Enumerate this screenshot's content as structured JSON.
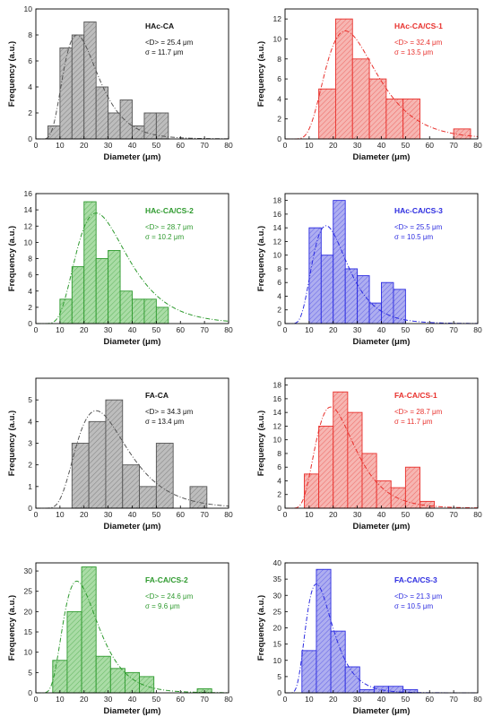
{
  "figure": {
    "xlabel": "Diameter (μm)",
    "ylabel": "Frequency (a.u.)"
  },
  "chart_data": [
    {
      "type": "bar",
      "title": "HAc-CA",
      "stat_mean": "<D> = 25.4 μm",
      "stat_sigma": "σ = 11.7 μm",
      "color": "#555555",
      "fill": "#bdbdbd",
      "xlim": [
        0,
        80
      ],
      "ylim": [
        0,
        10
      ],
      "xticks": [
        0,
        10,
        20,
        30,
        40,
        50,
        60,
        70,
        80
      ],
      "yticks": [
        0,
        2,
        4,
        6,
        8,
        10
      ],
      "bin_edges": [
        5,
        10,
        15,
        20,
        25,
        30,
        35,
        40,
        45,
        50,
        55
      ],
      "values": [
        1,
        7,
        8,
        9,
        4,
        2,
        3,
        1,
        2,
        2
      ],
      "fit": {
        "distribution": "log-normal",
        "peak_x": 17,
        "peak_y": 8.0
      }
    },
    {
      "type": "bar",
      "title": "HAc-CA/CS-1",
      "stat_mean": "<D> = 32.4 μm",
      "stat_sigma": "σ = 13.5 μm",
      "color": "#e8302c",
      "fill": "#f6b6b2",
      "xlim": [
        0,
        80
      ],
      "ylim": [
        0,
        13
      ],
      "xticks": [
        0,
        10,
        20,
        30,
        40,
        50,
        60,
        70,
        80
      ],
      "yticks": [
        0,
        2,
        4,
        6,
        8,
        10,
        12
      ],
      "bin_edges": [
        14,
        21,
        28,
        35,
        42,
        49,
        56,
        63,
        70,
        77
      ],
      "values": [
        5,
        12,
        8,
        6,
        4,
        4,
        0,
        0,
        1
      ],
      "fit": {
        "distribution": "log-normal",
        "peak_x": 25,
        "peak_y": 10.8
      }
    },
    {
      "type": "bar",
      "title": "HAc-CA/CS-2",
      "stat_mean": "<D> = 28.7 μm",
      "stat_sigma": "σ = 10.2 μm",
      "color": "#2e9a2e",
      "fill": "#aadca6",
      "xlim": [
        0,
        80
      ],
      "ylim": [
        0,
        16
      ],
      "xticks": [
        0,
        10,
        20,
        30,
        40,
        50,
        60,
        70,
        80
      ],
      "yticks": [
        0,
        2,
        4,
        6,
        8,
        10,
        12,
        14,
        16
      ],
      "bin_edges": [
        10,
        15,
        20,
        25,
        30,
        35,
        40,
        45,
        50,
        55
      ],
      "values": [
        3,
        7,
        15,
        8,
        9,
        4,
        3,
        3,
        2
      ],
      "fit": {
        "distribution": "log-normal",
        "peak_x": 25,
        "peak_y": 13.6
      }
    },
    {
      "type": "bar",
      "title": "HAc-CA/CS-3",
      "stat_mean": "<D> = 25.5 μm",
      "stat_sigma": "σ = 10.5 μm",
      "color": "#2c2ce0",
      "fill": "#aeaef0",
      "xlim": [
        0,
        80
      ],
      "ylim": [
        0,
        19
      ],
      "xticks": [
        0,
        10,
        20,
        30,
        40,
        50,
        60,
        70,
        80
      ],
      "yticks": [
        0,
        2,
        4,
        6,
        8,
        10,
        12,
        14,
        16,
        18
      ],
      "bin_edges": [
        10,
        15,
        20,
        25,
        30,
        35,
        40,
        45,
        50
      ],
      "values": [
        14,
        10,
        18,
        8,
        7,
        3,
        6,
        5
      ],
      "fit": {
        "distribution": "log-normal",
        "peak_x": 17,
        "peak_y": 14.3
      }
    },
    {
      "type": "bar",
      "title": "FA-CA",
      "stat_mean": "<D> = 34.3 μm",
      "stat_sigma": "σ = 13.4 μm",
      "color": "#555555",
      "fill": "#bdbdbd",
      "xlim": [
        0,
        80
      ],
      "ylim": [
        0,
        6
      ],
      "xticks": [
        0,
        10,
        20,
        30,
        40,
        50,
        60,
        70,
        80
      ],
      "yticks": [
        0,
        1,
        2,
        3,
        4,
        5
      ],
      "bin_edges": [
        15,
        22,
        29,
        36,
        43,
        50,
        57,
        64,
        71
      ],
      "values": [
        3,
        4,
        5,
        2,
        1,
        3,
        0,
        1
      ],
      "fit": {
        "distribution": "log-normal",
        "peak_x": 25,
        "peak_y": 4.5
      }
    },
    {
      "type": "bar",
      "title": "FA-CA/CS-1",
      "stat_mean": "<D> = 28.7 μm",
      "stat_sigma": "σ = 11.7 μm",
      "color": "#e8302c",
      "fill": "#f6b6b2",
      "xlim": [
        0,
        80
      ],
      "ylim": [
        0,
        19
      ],
      "xticks": [
        0,
        10,
        20,
        30,
        40,
        50,
        60,
        70,
        80
      ],
      "yticks": [
        0,
        2,
        4,
        6,
        8,
        10,
        12,
        14,
        16,
        18
      ],
      "bin_edges": [
        8,
        14,
        20,
        26,
        32,
        38,
        44,
        50,
        56,
        62
      ],
      "values": [
        5,
        12,
        17,
        14,
        8,
        4,
        3,
        6,
        1
      ],
      "fit": {
        "distribution": "log-normal",
        "peak_x": 19,
        "peak_y": 14.8
      }
    },
    {
      "type": "bar",
      "title": "FA-CA/CS-2",
      "stat_mean": "<D> = 24.6 μm",
      "stat_sigma": "σ = 9.6 μm",
      "color": "#2e9a2e",
      "fill": "#aadca6",
      "xlim": [
        0,
        80
      ],
      "ylim": [
        0,
        32
      ],
      "xticks": [
        0,
        10,
        20,
        30,
        40,
        50,
        60,
        70,
        80
      ],
      "yticks": [
        0,
        5,
        10,
        15,
        20,
        25,
        30
      ],
      "bin_edges": [
        7,
        13,
        19,
        25,
        31,
        37,
        43,
        49,
        55,
        61,
        67,
        73
      ],
      "values": [
        8,
        20,
        31,
        9,
        6,
        5,
        4,
        0,
        0,
        0,
        1
      ],
      "fit": {
        "distribution": "log-normal",
        "peak_x": 17,
        "peak_y": 27.5
      }
    },
    {
      "type": "bar",
      "title": "FA-CA/CS-3",
      "stat_mean": "<D> = 21.3 μm",
      "stat_sigma": "σ = 10.5 μm",
      "color": "#2c2ce0",
      "fill": "#aeaef0",
      "xlim": [
        0,
        80
      ],
      "ylim": [
        0,
        40
      ],
      "xticks": [
        0,
        10,
        20,
        30,
        40,
        50,
        60,
        70,
        80
      ],
      "yticks": [
        0,
        5,
        10,
        15,
        20,
        25,
        30,
        35,
        40
      ],
      "bin_edges": [
        7,
        13,
        19,
        25,
        31,
        37,
        43,
        49,
        55
      ],
      "values": [
        13,
        38,
        19,
        8,
        1,
        2,
        2,
        1
      ],
      "fit": {
        "distribution": "log-normal",
        "peak_x": 13,
        "peak_y": 33.5
      }
    }
  ]
}
